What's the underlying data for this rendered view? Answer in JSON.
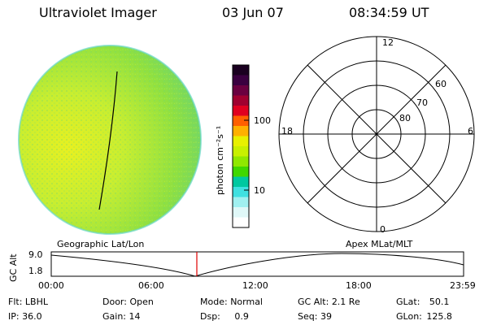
{
  "header": {
    "title": "Ultraviolet Imager",
    "date": "03 Jun 07",
    "time": "08:34:59 UT"
  },
  "colorbar": {
    "unit_label": "photon cm⁻²s⁻¹",
    "tick_labels": [
      "100",
      "10"
    ],
    "colors": [
      "#1a0020",
      "#3a0040",
      "#6a0040",
      "#a00030",
      "#e00020",
      "#ff6000",
      "#ffb000",
      "#e8f000",
      "#c8f000",
      "#90e800",
      "#40d800",
      "#00c8a0",
      "#40e0e0",
      "#a0f0f0",
      "#e0f8f8",
      "#ffffff"
    ]
  },
  "polar_plot": {
    "mlt_labels": {
      "top": "12",
      "left": "18",
      "right": "6",
      "bottom": "0"
    },
    "lat_labels": [
      "60",
      "70",
      "80"
    ]
  },
  "left_panel_label": "Geographic Lat/Lon",
  "right_panel_label": "Apex MLat/MLT",
  "altitude_plot": {
    "axis_label": "GC Alt",
    "y_ticks": [
      "9.0",
      "1.8"
    ],
    "x_ticks": [
      "00:00",
      "06:00",
      "12:00",
      "18:00",
      "23:59"
    ],
    "current_time_marker_color": "#e00000"
  },
  "info": {
    "row1": [
      {
        "label": "Flt:",
        "value": "LBHL"
      },
      {
        "label": "Door:",
        "value": "Open"
      },
      {
        "label": "Mode:",
        "value": "Normal"
      },
      {
        "label": "GC Alt:",
        "value": "2.1 Re"
      },
      {
        "label": "GLat:",
        "value": "50.1"
      }
    ],
    "row2": [
      {
        "label": "IP:",
        "value": "36.0"
      },
      {
        "label": "Gain:",
        "value": "14"
      },
      {
        "label": "Dsp:",
        "value": "0.9"
      },
      {
        "label": "Seq:",
        "value": "39"
      },
      {
        "label": "GLon:",
        "value": "125.8"
      }
    ]
  }
}
